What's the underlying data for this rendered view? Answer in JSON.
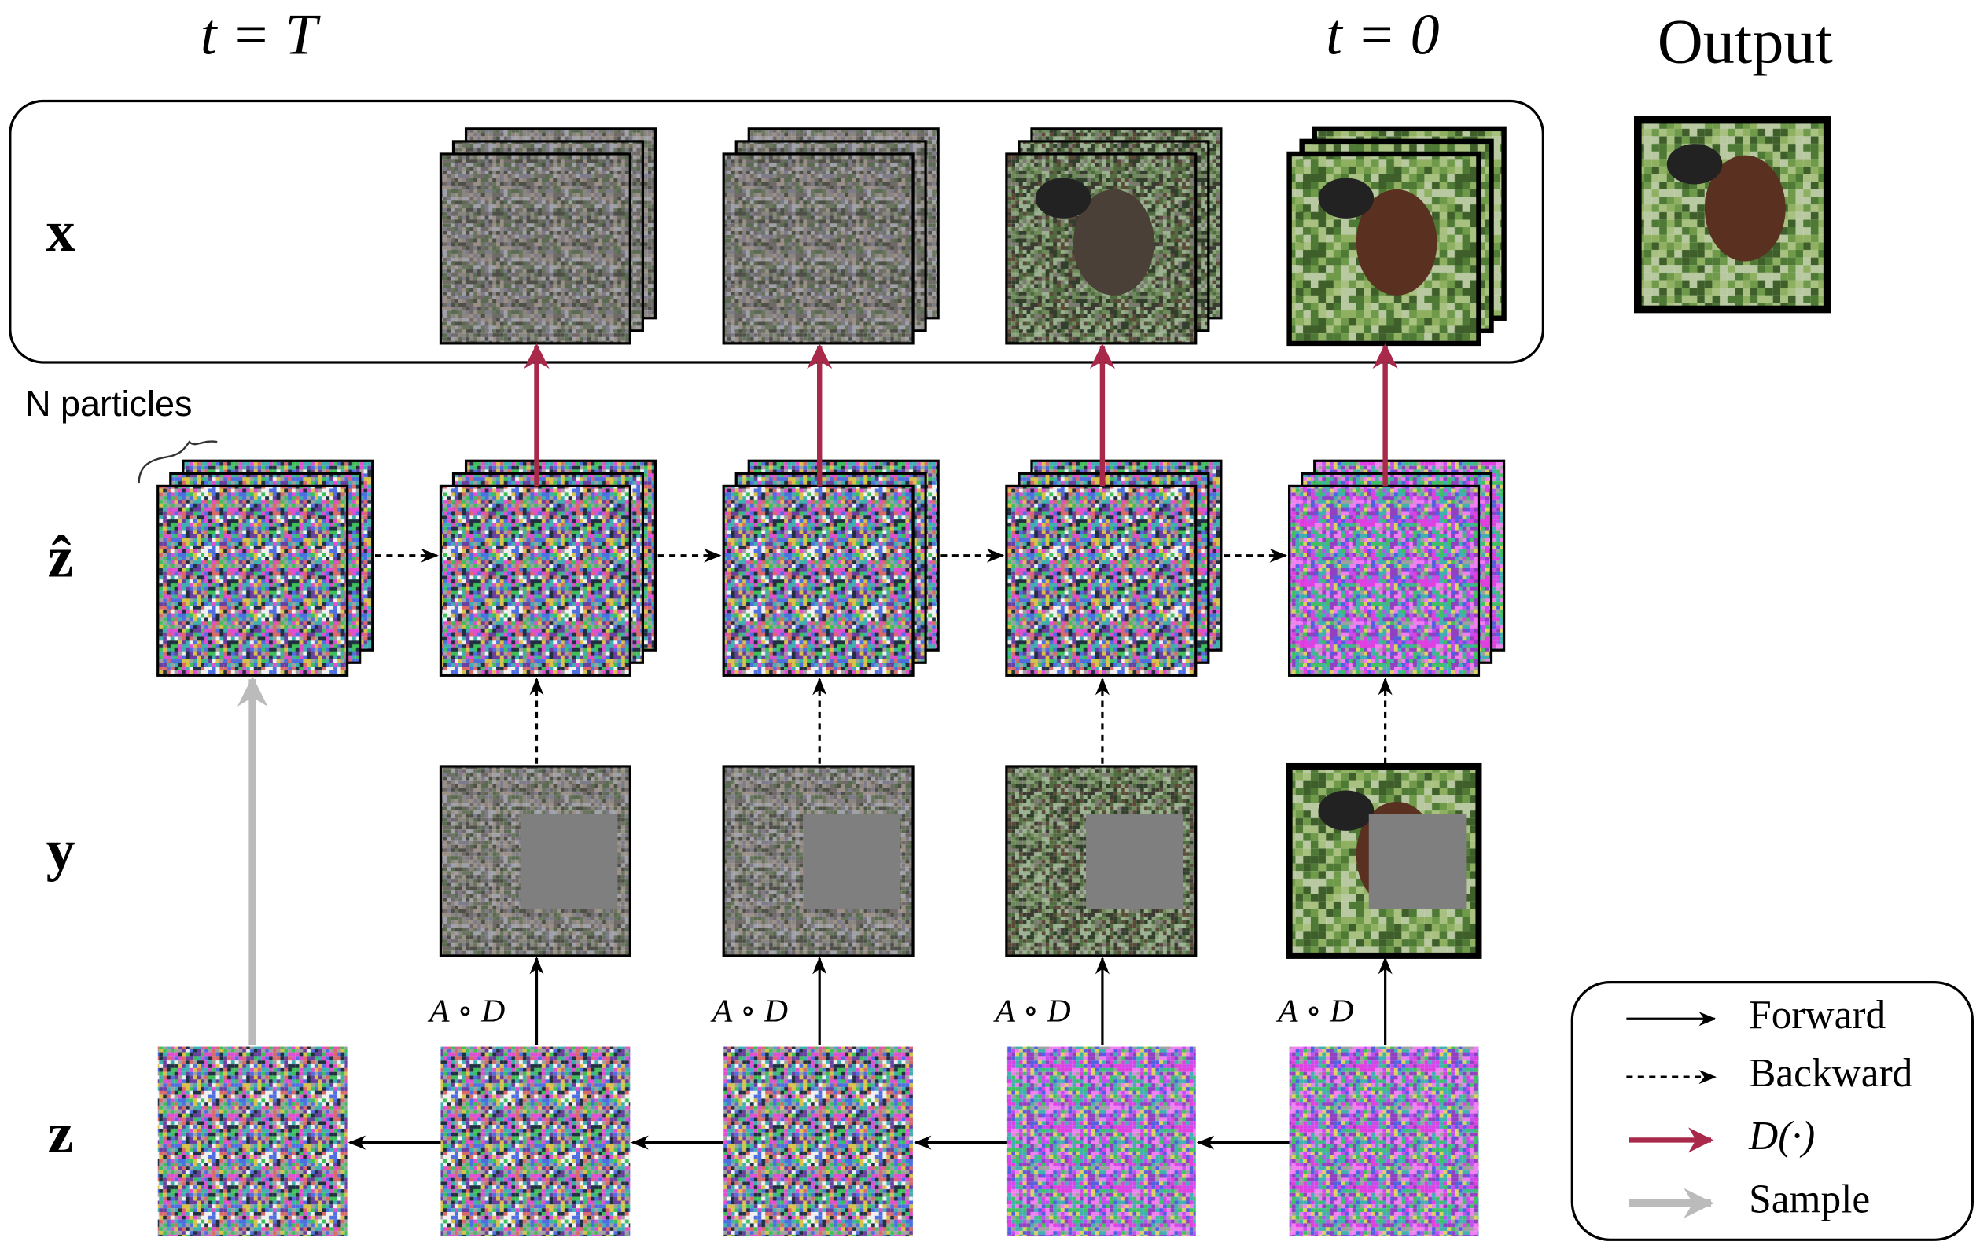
{
  "header": {
    "t_start": "t = T",
    "t_end": "t = 0",
    "output": "Output"
  },
  "rows": {
    "x": "x",
    "z_hat": "ẑ",
    "y": "y",
    "z": "z"
  },
  "annotation": "N particles",
  "operator_labels": [
    "A ∘ D",
    "A ∘ D",
    "A ∘ D",
    "A ∘ D"
  ],
  "legend": [
    {
      "label": "Forward"
    },
    {
      "label": "Backward"
    },
    {
      "label": "D(·)"
    },
    {
      "label": "Sample"
    }
  ]
}
